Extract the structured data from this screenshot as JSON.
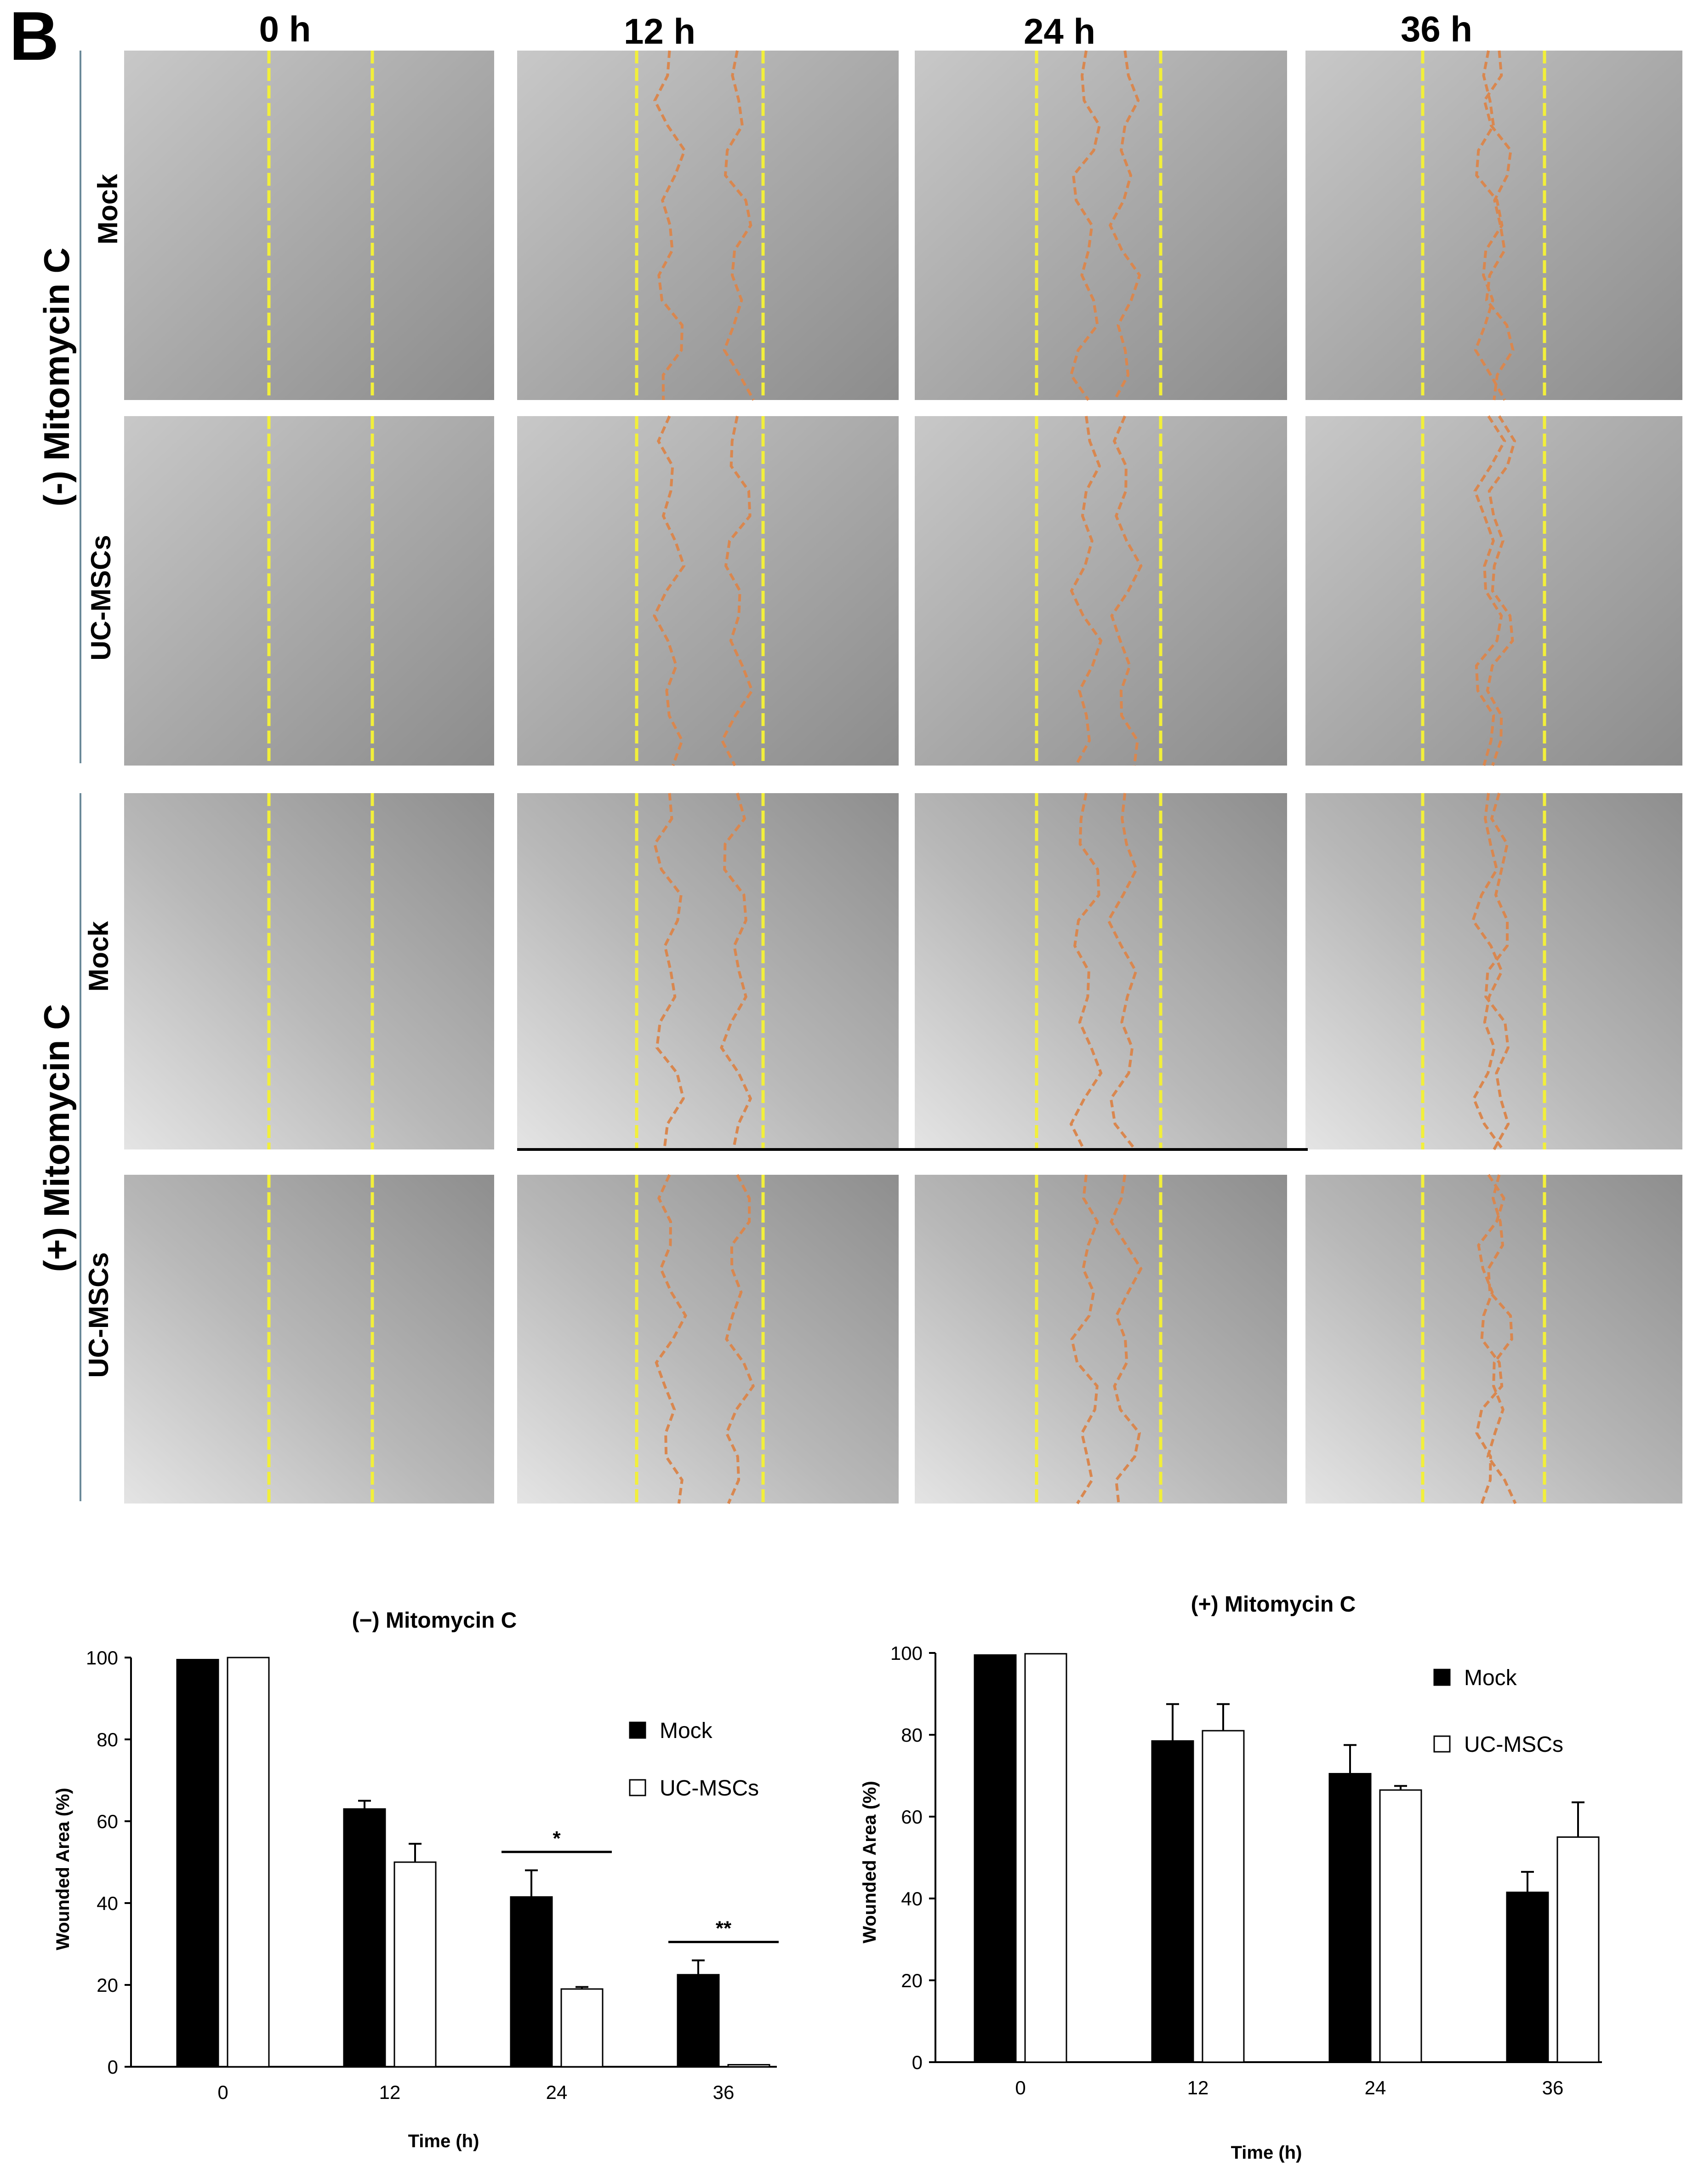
{
  "figure": {
    "panel_label": "B",
    "timepoints": [
      "0 h",
      "12 h",
      "24 h",
      "36 h"
    ],
    "conditions": [
      {
        "label": "(-) Mitomycin C",
        "rows": [
          "Mock",
          "UC-MSCs"
        ]
      },
      {
        "label": "(+) Mitomycin C",
        "rows": [
          "Mock",
          "UC-MSCs"
        ]
      }
    ],
    "colors": {
      "initial_wound_edge": "#f2ef3a",
      "migrating_front": "#d9874f",
      "mock_bar": "#000000",
      "ucmsc_bar": "#ffffff"
    }
  },
  "chart_data": [
    {
      "type": "bar",
      "title": "(−) Mitomycin C",
      "xlabel": "Time (h)",
      "ylabel": "Wounded Area (%)",
      "categories": [
        "0",
        "12",
        "24",
        "36"
      ],
      "yticks": [
        "0",
        "20",
        "40",
        "60",
        "80",
        "100"
      ],
      "ylim": [
        0,
        100
      ],
      "legend_position": "right",
      "series": [
        {
          "name": "Mock",
          "values": [
            99.5,
            63,
            41.5,
            22.5
          ],
          "errors": [
            0,
            2,
            6.5,
            3.5
          ]
        },
        {
          "name": "UC-MSCs",
          "values": [
            100,
            50,
            19,
            0.5
          ],
          "errors": [
            0,
            4.5,
            0.5,
            0
          ]
        }
      ],
      "significance": [
        {
          "category": "24",
          "label": "*"
        },
        {
          "category": "36",
          "label": "**"
        }
      ]
    },
    {
      "type": "bar",
      "title": "(+) Mitomycin C",
      "xlabel": "Time (h)",
      "ylabel": "Wounded Area (%)",
      "categories": [
        "0",
        "12",
        "24",
        "36"
      ],
      "yticks": [
        "0",
        "20",
        "40",
        "60",
        "80",
        "100"
      ],
      "ylim": [
        0,
        100
      ],
      "legend_position": "top-right",
      "series": [
        {
          "name": "Mock",
          "values": [
            99.5,
            78.5,
            70.5,
            41.5
          ],
          "errors": [
            0,
            9,
            7,
            5
          ]
        },
        {
          "name": "UC-MSCs",
          "values": [
            99.8,
            81,
            66.5,
            55
          ],
          "errors": [
            0,
            6.5,
            1,
            8.5
          ]
        }
      ],
      "significance": []
    }
  ]
}
